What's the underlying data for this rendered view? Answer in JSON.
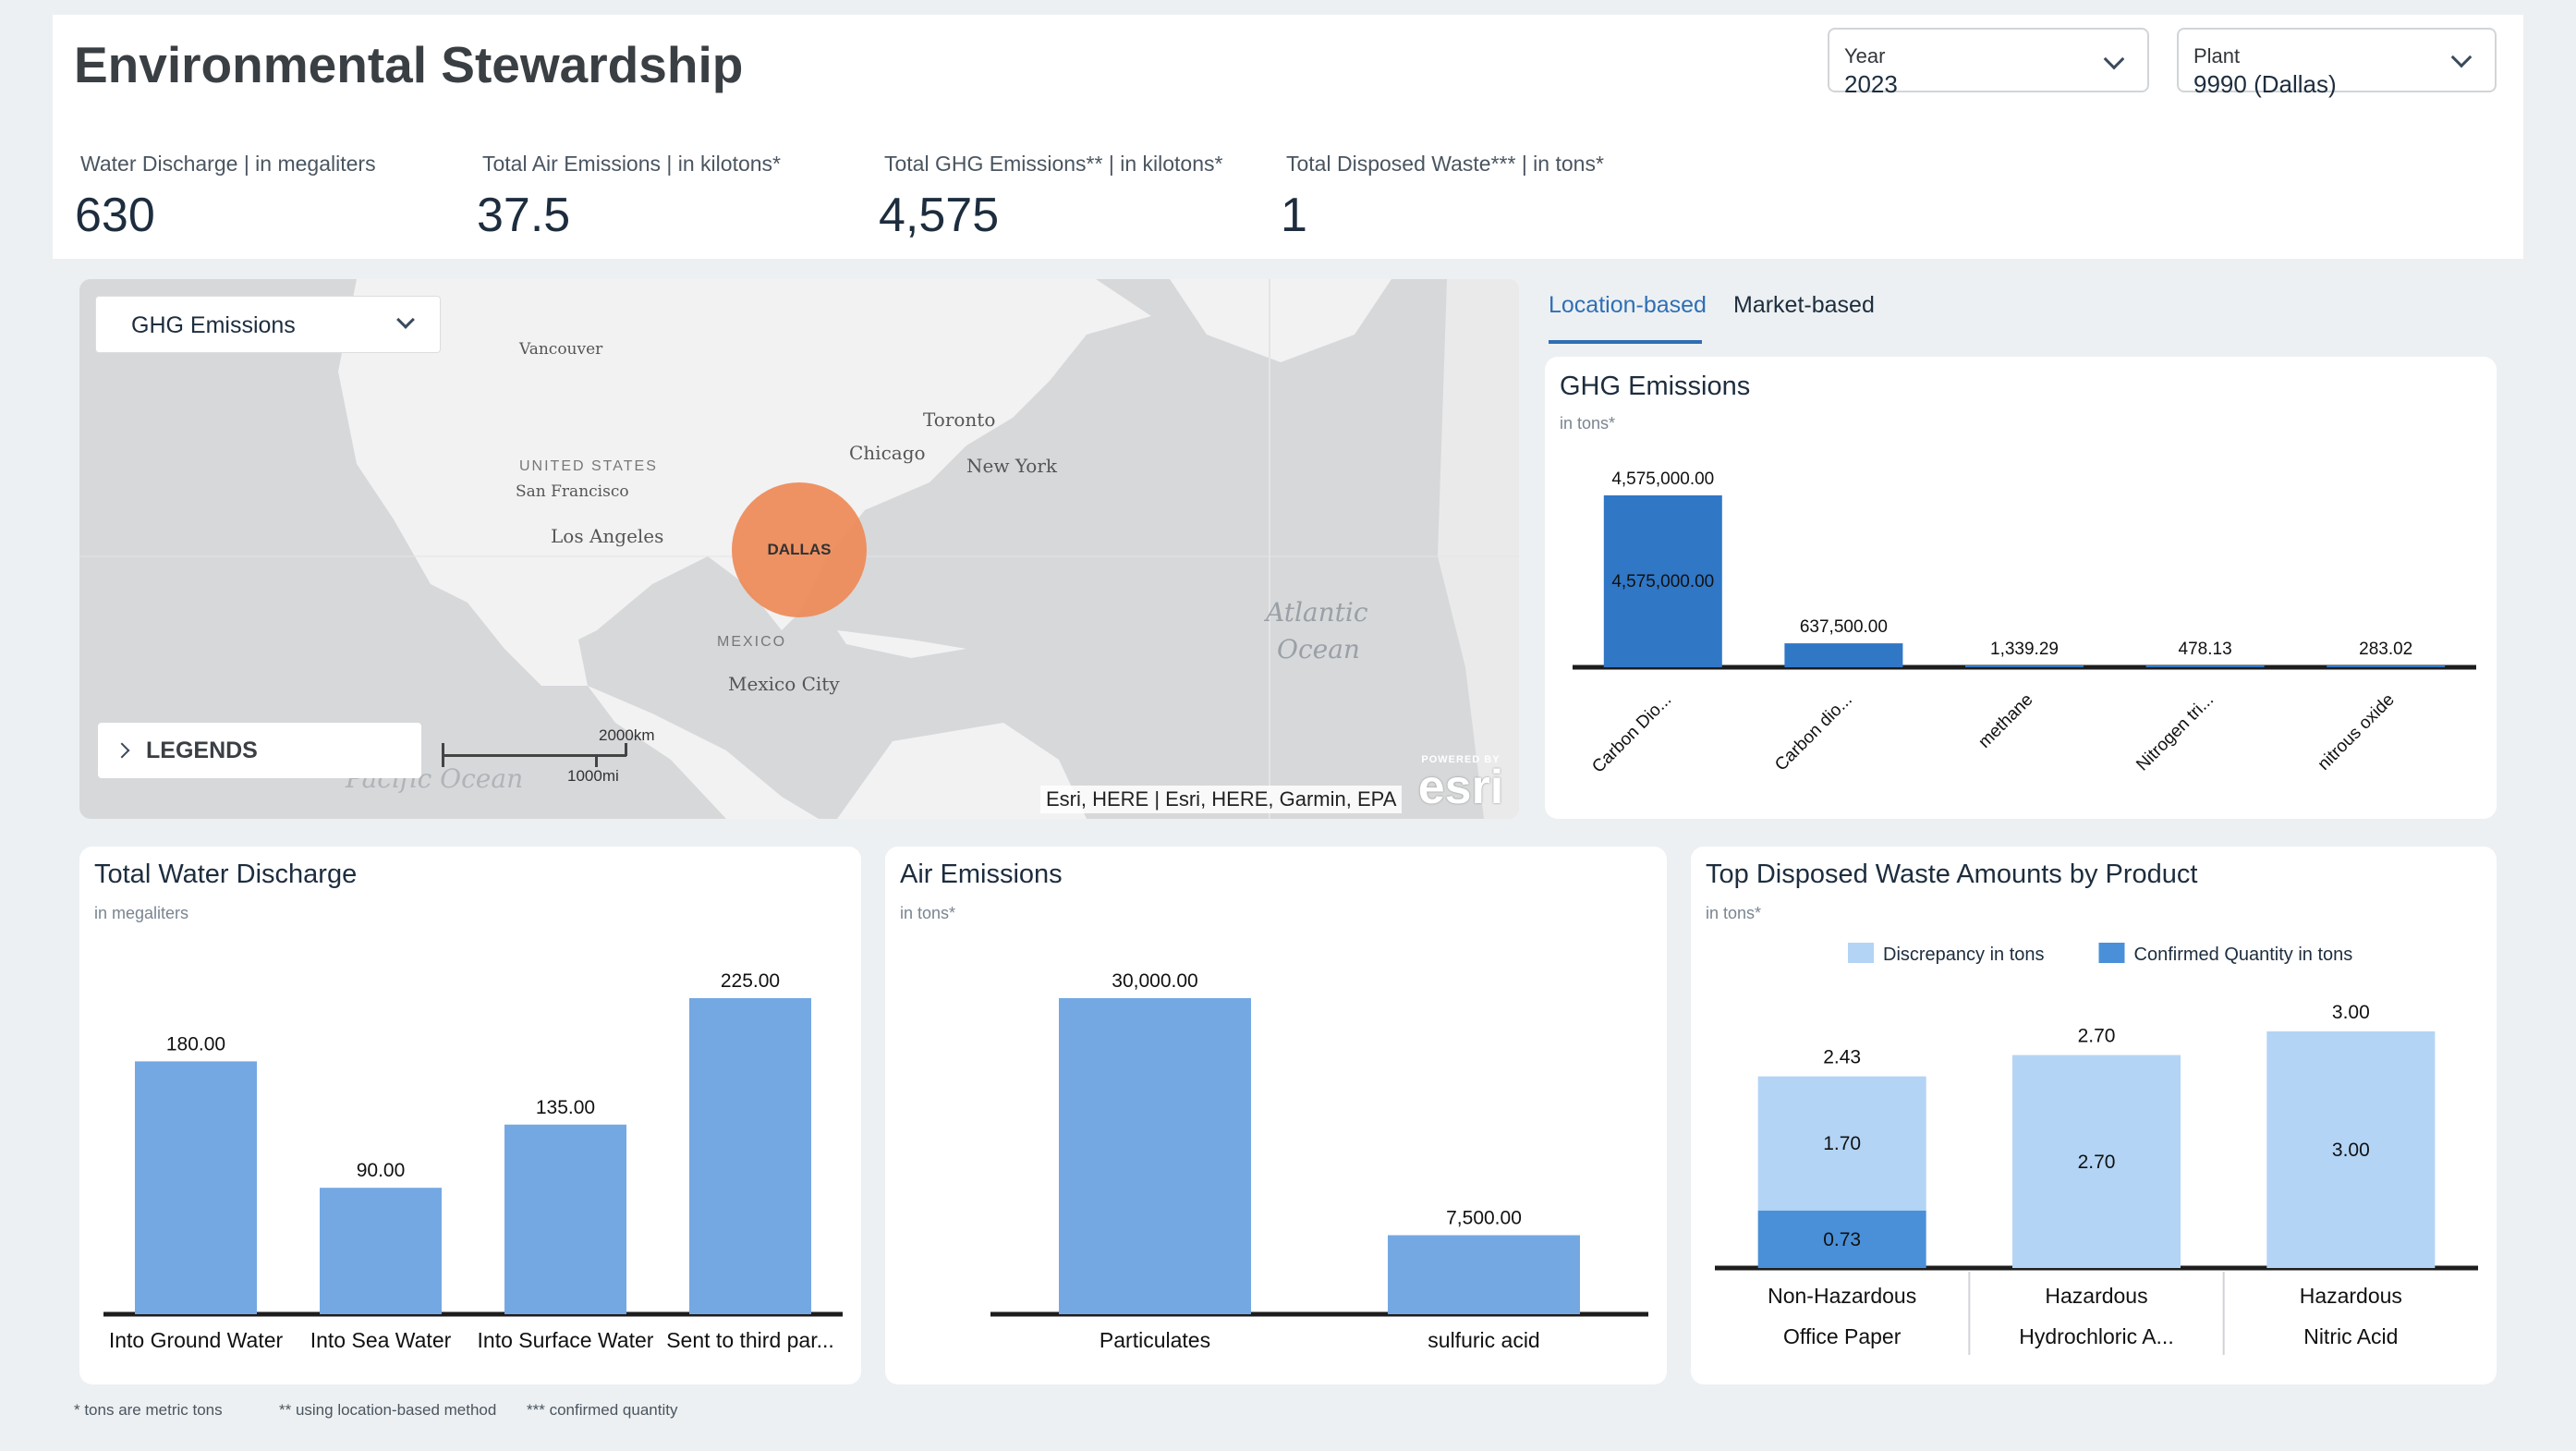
{
  "header": {
    "title": "Environmental Stewardship",
    "year": {
      "label": "Year",
      "value": "2023"
    },
    "plant": {
      "label": "Plant",
      "value": "9990 (Dallas)"
    }
  },
  "kpis": [
    {
      "label": "Water Discharge | in megaliters",
      "value": "630"
    },
    {
      "label": "Total Air Emissions | in kilotons*",
      "value": "37.5"
    },
    {
      "label": "Total GHG Emissions** | in kilotons*",
      "value": "4,575"
    },
    {
      "label": "Total Disposed Waste*** | in tons*",
      "value": "1"
    }
  ],
  "map": {
    "layer_select": "GHG Emissions",
    "legends_label": "LEGENDS",
    "marker_label": "DALLAS",
    "places": [
      "Vancouver",
      "Toronto",
      "Chicago",
      "New York",
      "UNITED STATES",
      "San Francisco",
      "Los Angeles",
      "MEXICO",
      "Mexico City",
      "Atlantic",
      "Ocean",
      "Pacific Ocean"
    ],
    "scale_km": "2000km",
    "scale_mi": "1000mi",
    "attribution": "Esri, HERE | Esri, HERE, Garmin, EPA",
    "powered_by": "POWERED BY",
    "esri_logo": "esri",
    "marker_color": "#ee8a58",
    "land_color": "#f2f2f2",
    "water_color": "#d6d8da"
  },
  "tabs": [
    {
      "label": "Location-based",
      "active": true
    },
    {
      "label": "Market-based",
      "active": false
    }
  ],
  "chart_data": [
    {
      "id": "ghg",
      "type": "bar",
      "title": "GHG Emissions",
      "subtitle": "in tons*",
      "categories": [
        "Carbon Dio...",
        "Carbon dio...",
        "methane",
        "Nitrogen tri...",
        "nitrous oxide"
      ],
      "values": [
        4575000,
        637500,
        1339.29,
        478.13,
        283.02
      ],
      "value_labels": [
        "4,575,000.00",
        "637,500.00",
        "1,339.29",
        "478.13",
        "283.02"
      ],
      "inner_labels": [
        "4,575,000.00",
        "",
        "",
        "",
        ""
      ],
      "ylim": [
        0,
        4575000
      ],
      "color": "#3077c6",
      "grid": false
    },
    {
      "id": "water",
      "type": "bar",
      "title": "Total Water Discharge",
      "subtitle": "in megaliters",
      "categories": [
        "Into Ground Water",
        "Into Sea Water",
        "Into Surface Water",
        "Sent to third par..."
      ],
      "values": [
        180,
        90,
        135,
        225
      ],
      "value_labels": [
        "180.00",
        "90.00",
        "135.00",
        "225.00"
      ],
      "ylim": [
        0,
        225
      ],
      "color": "#74a8e3",
      "grid": false
    },
    {
      "id": "air",
      "type": "bar",
      "title": "Air Emissions",
      "subtitle": "in tons*",
      "categories": [
        "Particulates",
        "sulfuric acid"
      ],
      "values": [
        30000,
        7500
      ],
      "value_labels": [
        "30,000.00",
        "7,500.00"
      ],
      "ylim": [
        0,
        30000
      ],
      "color": "#74a8e3",
      "grid": false
    },
    {
      "id": "waste",
      "type": "bar",
      "stacked": true,
      "title": "Top Disposed Waste Amounts by Product",
      "subtitle": "in tons*",
      "categories": [
        {
          "type": "Non-Hazardous",
          "product": "Office Paper"
        },
        {
          "type": "Hazardous",
          "product": "Hydrochloric A..."
        },
        {
          "type": "Hazardous",
          "product": "Nitric Acid"
        }
      ],
      "series": [
        {
          "name": "Confirmed Quantity in tons",
          "values": [
            0.73,
            0,
            0
          ],
          "labels": [
            "0.73",
            "",
            ""
          ],
          "color": "#4a90d9"
        },
        {
          "name": "Discrepancy in tons",
          "values": [
            1.7,
            2.7,
            3.0
          ],
          "labels": [
            "1.70",
            "2.70",
            "3.00"
          ],
          "color": "#b3d4f5"
        }
      ],
      "totals": [
        "2.43",
        "2.70",
        "3.00"
      ],
      "legend": [
        {
          "name": "Discrepancy in tons",
          "color": "#b3d4f5"
        },
        {
          "name": "Confirmed Quantity in tons",
          "color": "#4a90d9"
        }
      ],
      "legend_position": "top",
      "ylim": [
        0,
        3.0
      ],
      "grid": false
    }
  ],
  "footnotes": [
    "* tons are metric tons",
    "** using location-based method",
    "*** confirmed quantity"
  ]
}
